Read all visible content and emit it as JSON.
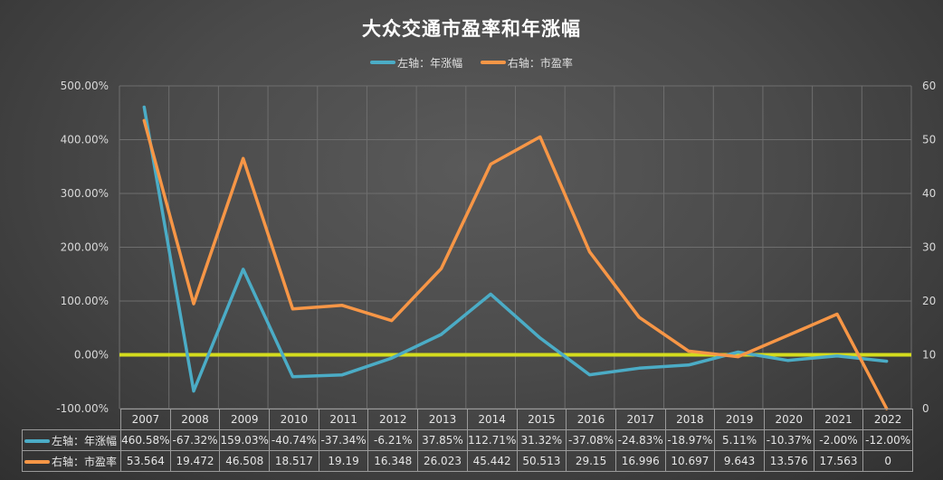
{
  "title": "大众交通市盈率和年涨幅",
  "legend": [
    {
      "label": "左轴：年涨幅",
      "color": "#4bacc6"
    },
    {
      "label": "右轴：市盈率",
      "color": "#f79646"
    }
  ],
  "colors": {
    "series_left": "#4bacc6",
    "series_right": "#f79646",
    "zero_line": "#d4dc1e",
    "grid": "#6e6e6e"
  },
  "table": {
    "row_labels": [
      "左轴：年涨幅",
      "右轴：市盈率"
    ],
    "years": [
      "2007",
      "2008",
      "2009",
      "2010",
      "2011",
      "2012",
      "2013",
      "2014",
      "2015",
      "2016",
      "2017",
      "2018",
      "2019",
      "2020",
      "2021",
      "2022"
    ],
    "annual_change": [
      "460.58%",
      "-67.32%",
      "159.03%",
      "-40.74%",
      "-37.34%",
      "-6.21%",
      "37.85%",
      "112.71%",
      "31.32%",
      "-37.08%",
      "-24.83%",
      "-18.97%",
      "5.11%",
      "-10.37%",
      "-2.00%",
      "-12.00%"
    ],
    "pe_ratio": [
      "53.564",
      "19.472",
      "46.508",
      "18.517",
      "19.19",
      "16.348",
      "26.023",
      "45.442",
      "50.513",
      "29.15",
      "16.996",
      "10.697",
      "9.643",
      "13.576",
      "17.563",
      "0"
    ]
  },
  "chart_data": {
    "type": "line",
    "title": "大众交通市盈率和年涨幅",
    "categories": [
      "2007",
      "2008",
      "2009",
      "2010",
      "2011",
      "2012",
      "2013",
      "2014",
      "2015",
      "2016",
      "2017",
      "2018",
      "2019",
      "2020",
      "2021",
      "2022"
    ],
    "series": [
      {
        "name": "左轴：年涨幅",
        "axis": "left",
        "unit": "%",
        "color": "#4bacc6",
        "values": [
          460.58,
          -67.32,
          159.03,
          -40.74,
          -37.34,
          -6.21,
          37.85,
          112.71,
          31.32,
          -37.08,
          -24.83,
          -18.97,
          5.11,
          -10.37,
          -2.0,
          -12.0
        ]
      },
      {
        "name": "右轴：市盈率",
        "axis": "right",
        "color": "#f79646",
        "values": [
          53.564,
          19.472,
          46.508,
          18.517,
          19.19,
          16.348,
          26.023,
          45.442,
          50.513,
          29.15,
          16.996,
          10.697,
          9.643,
          13.576,
          17.563,
          0
        ]
      }
    ],
    "reference_line": {
      "axis": "left",
      "value": 0,
      "color": "#d4dc1e"
    },
    "left_axis": {
      "min": -100,
      "max": 500,
      "step": 100,
      "tick_labels": [
        "-100.00%",
        "0.00%",
        "100.00%",
        "200.00%",
        "300.00%",
        "400.00%",
        "500.00%"
      ]
    },
    "right_axis": {
      "min": 0,
      "max": 60,
      "step": 10,
      "tick_labels": [
        "0",
        "10",
        "20",
        "30",
        "40",
        "50",
        "60"
      ]
    },
    "xlabel": "",
    "ylabel": "",
    "grid": true,
    "legend_position": "top",
    "data_table": true
  }
}
